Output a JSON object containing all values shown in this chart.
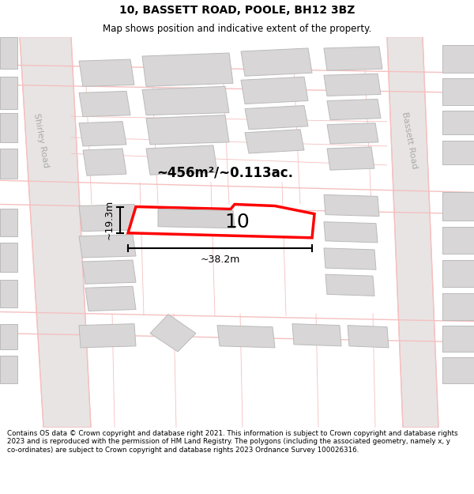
{
  "title": "10, BASSETT ROAD, POOLE, BH12 3BZ",
  "subtitle": "Map shows position and indicative extent of the property.",
  "footer": "Contains OS data © Crown copyright and database right 2021. This information is subject to Crown copyright and database rights 2023 and is reproduced with the permission of HM Land Registry. The polygons (including the associated geometry, namely x, y co-ordinates) are subject to Crown copyright and database rights 2023 Ordnance Survey 100026316.",
  "map_bg": "#f2f0f0",
  "road_color": "#f5c0c0",
  "road_lw": 1.0,
  "building_fill": "#d8d6d6",
  "building_edge": "#bbbbbb",
  "building_lw": 0.7,
  "highlight_fill": "#ffffff",
  "highlight_edge": "#ff0000",
  "highlight_lw": 2.5,
  "road_label_color": "#aaaaaa",
  "area_text": "~456m²/~0.113ac.",
  "label_text": "10",
  "width_label": "~38.2m",
  "height_label": "~19.3m",
  "road_label_right": "Bassett Road",
  "road_label_left": "Shirley Road",
  "title_fontsize": 10,
  "subtitle_fontsize": 8.5,
  "footer_fontsize": 6.3,
  "area_fontsize": 12,
  "label_fontsize": 18,
  "dim_fontsize": 9
}
